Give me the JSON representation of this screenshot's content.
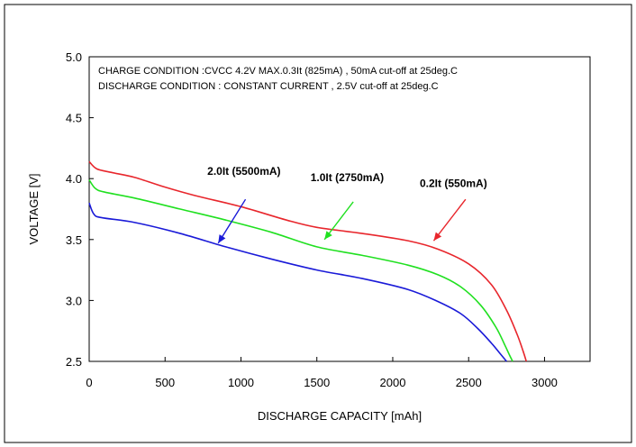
{
  "chart_data": {
    "type": "line",
    "title": "",
    "xlabel": "DISCHARGE CAPACITY  [mAh]",
    "ylabel": "VOLTAGE  [V]",
    "xlim": [
      0,
      3300
    ],
    "ylim": [
      2.5,
      5.0
    ],
    "xticks": [
      0,
      500,
      1000,
      1500,
      2000,
      2500,
      3000
    ],
    "yticks": [
      2.5,
      3.0,
      3.5,
      4.0,
      4.5,
      5.0
    ],
    "xtick_labels": [
      "0",
      "500",
      "1000",
      "1500",
      "2000",
      "2500",
      "3000"
    ],
    "ytick_labels": [
      "2.5",
      "3.0",
      "3.5",
      "4.0",
      "4.5",
      "5.0"
    ],
    "grid": false,
    "notes": [
      "CHARGE CONDITION :CVCC 4.2V MAX.0.3It (825mA) , 50mA cut-off at  25deg.C",
      "DISCHARGE CONDITION : CONSTANT CURRENT , 2.5V cut-off at  25deg.C"
    ],
    "series": [
      {
        "name": "0.2It (550mA)",
        "color": "#e8262c",
        "points": [
          [
            0,
            4.14
          ],
          [
            50,
            4.08
          ],
          [
            150,
            4.05
          ],
          [
            300,
            4.01
          ],
          [
            500,
            3.93
          ],
          [
            700,
            3.86
          ],
          [
            1000,
            3.77
          ],
          [
            1300,
            3.66
          ],
          [
            1500,
            3.6
          ],
          [
            1800,
            3.55
          ],
          [
            2100,
            3.49
          ],
          [
            2300,
            3.42
          ],
          [
            2500,
            3.3
          ],
          [
            2650,
            3.13
          ],
          [
            2750,
            2.92
          ],
          [
            2820,
            2.72
          ],
          [
            2860,
            2.58
          ],
          [
            2880,
            2.5
          ]
        ]
      },
      {
        "name": "1.0It (2750mA)",
        "color": "#20e020",
        "points": [
          [
            0,
            3.99
          ],
          [
            40,
            3.92
          ],
          [
            100,
            3.89
          ],
          [
            300,
            3.84
          ],
          [
            600,
            3.75
          ],
          [
            900,
            3.66
          ],
          [
            1200,
            3.56
          ],
          [
            1500,
            3.44
          ],
          [
            1800,
            3.37
          ],
          [
            2100,
            3.29
          ],
          [
            2300,
            3.21
          ],
          [
            2450,
            3.11
          ],
          [
            2580,
            2.96
          ],
          [
            2680,
            2.78
          ],
          [
            2740,
            2.63
          ],
          [
            2770,
            2.55
          ],
          [
            2790,
            2.5
          ]
        ]
      },
      {
        "name": "2.0It (5500mA)",
        "color": "#1a1ad8",
        "points": [
          [
            0,
            3.8
          ],
          [
            30,
            3.71
          ],
          [
            80,
            3.68
          ],
          [
            300,
            3.64
          ],
          [
            600,
            3.55
          ],
          [
            900,
            3.44
          ],
          [
            1200,
            3.34
          ],
          [
            1500,
            3.25
          ],
          [
            1800,
            3.18
          ],
          [
            2100,
            3.09
          ],
          [
            2300,
            2.99
          ],
          [
            2450,
            2.89
          ],
          [
            2560,
            2.77
          ],
          [
            2650,
            2.65
          ],
          [
            2710,
            2.56
          ],
          [
            2750,
            2.5
          ]
        ]
      }
    ],
    "annotations": [
      {
        "text": "2.0It (5500mA)",
        "series": 2,
        "text_at": [
          1020,
          4.03
        ],
        "arrow_from": [
          1030,
          3.83
        ],
        "arrow_to": [
          850,
          3.47
        ]
      },
      {
        "text": "1.0It (2750mA)",
        "series": 1,
        "text_at": [
          1700,
          3.98
        ],
        "arrow_from": [
          1740,
          3.81
        ],
        "arrow_to": [
          1550,
          3.5
        ]
      },
      {
        "text": "0.2It (550mA)",
        "series": 0,
        "text_at": [
          2400,
          3.93
        ],
        "arrow_from": [
          2480,
          3.83
        ],
        "arrow_to": [
          2270,
          3.49
        ]
      }
    ]
  }
}
